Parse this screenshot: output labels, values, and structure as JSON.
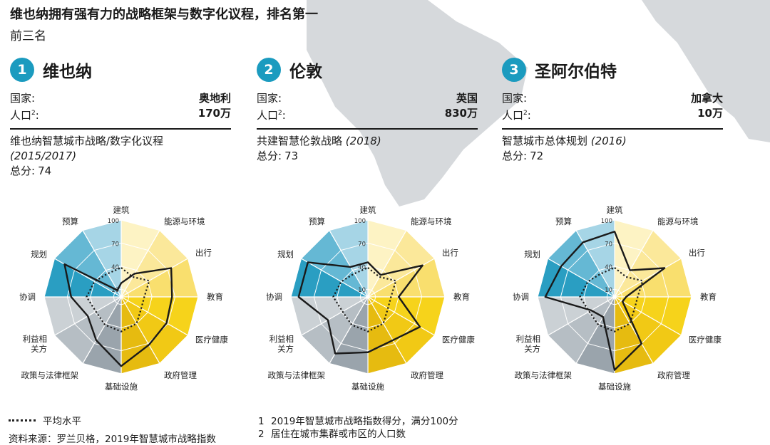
{
  "title": "维也纳拥有强有力的战略框架与数字化议程，排名第一",
  "subtitle": "前三名",
  "labels": {
    "country": "国家:",
    "population": "人口",
    "population_sup": "2",
    "population_colon": ":",
    "score": "总分:"
  },
  "cities": [
    {
      "rank": "1",
      "name": "维也纳",
      "country": "奥地利",
      "population": "170万",
      "strategy_text": "维也纳智慧城市战略/数字化议程",
      "strategy_year": "(2015/2017)",
      "score": "74"
    },
    {
      "rank": "2",
      "name": "伦敦",
      "country": "英国",
      "population": "830万",
      "strategy_text": "共建智慧伦敦战略",
      "strategy_year": "(2018)",
      "score": "73"
    },
    {
      "rank": "3",
      "name": "圣阿尔伯特",
      "country": "加拿大",
      "population": "10万",
      "strategy_text": "智慧城市总体规划",
      "strategy_year": "(2016)",
      "score": "72"
    }
  ],
  "legend": {
    "average_label": "平均水平"
  },
  "footnotes": [
    {
      "num": "1",
      "text": "2019年智慧城市战略指数得分，满分100分"
    },
    {
      "num": "2",
      "text": "居住在城市集群或市区的人口数"
    }
  ],
  "source": "资料来源：罗兰贝格，2019年智慧城市战略指数",
  "colors": {
    "accent": "#1b9bbf",
    "yellow": "#f7d31a",
    "blue": "#2a9ec2",
    "grey": "#9aa4ac",
    "map": "#d6d9dc"
  },
  "chart_data": [
    {
      "type": "radar",
      "title": "维也纳",
      "categories": [
        "建筑",
        "能源与环境",
        "出行",
        "教育",
        "医疗健康",
        "政府管理",
        "基础设施",
        "政策与法律框架",
        "利益相关方",
        "协调",
        "规划",
        "预算"
      ],
      "category_label_lines": [
        [
          "建筑"
        ],
        [
          "能源与环境"
        ],
        [
          "出行"
        ],
        [
          "教育"
        ],
        [
          "医疗健康"
        ],
        [
          "政府管理"
        ],
        [
          "基础设施"
        ],
        [
          "政策与法律框架"
        ],
        [
          "利益相",
          "关方"
        ],
        [
          "协调"
        ],
        [
          "规划"
        ],
        [
          "预算"
        ]
      ],
      "ticks": [
        "10",
        "40",
        "70",
        "100"
      ],
      "rlim": [
        0,
        100
      ],
      "series": [
        {
          "values": [
            18,
            35,
            75,
            66,
            68,
            72,
            90,
            65,
            50,
            65,
            85,
            10
          ]
        },
        {
          "name": "平均水平",
          "style": "dotted",
          "values": [
            38,
            30,
            42,
            30,
            30,
            40,
            45,
            42,
            38,
            45,
            40,
            35
          ]
        }
      ]
    },
    {
      "type": "radar",
      "title": "伦敦",
      "categories": [
        "建筑",
        "能源与环境",
        "出行",
        "教育",
        "医疗健康",
        "政府管理",
        "基础设施",
        "政策与法律框架",
        "利益相关方",
        "协调",
        "规划",
        "预算"
      ],
      "category_label_lines": [
        [
          "建筑"
        ],
        [
          "能源与环境"
        ],
        [
          "出行"
        ],
        [
          "教育"
        ],
        [
          "医疗健康"
        ],
        [
          "政府管理"
        ],
        [
          "基础设施"
        ],
        [
          "政策与法律框架"
        ],
        [
          "利益相",
          "关方"
        ],
        [
          "协调"
        ],
        [
          "规划"
        ],
        [
          "预算"
        ]
      ],
      "ticks": [
        "10",
        "40",
        "70",
        "100"
      ],
      "rlim": [
        0,
        100
      ],
      "series": [
        {
          "values": [
            45,
            33,
            82,
            40,
            78,
            65,
            72,
            85,
            60,
            90,
            90,
            45
          ]
        },
        {
          "name": "平均水平",
          "style": "dotted",
          "values": [
            38,
            30,
            42,
            30,
            30,
            40,
            45,
            42,
            38,
            45,
            40,
            35
          ]
        }
      ]
    },
    {
      "type": "radar",
      "title": "圣阿尔伯特",
      "categories": [
        "建筑",
        "能源与环境",
        "出行",
        "教育",
        "医疗健康",
        "政府管理",
        "基础设施",
        "政策与法律框架",
        "利益相关方",
        "协调",
        "规划",
        "预算"
      ],
      "category_label_lines": [
        [
          "建筑"
        ],
        [
          "能源与环境"
        ],
        [
          "出行"
        ],
        [
          "教育"
        ],
        [
          "医疗健康"
        ],
        [
          "政府管理"
        ],
        [
          "基础设施"
        ],
        [
          "政策与法律框架"
        ],
        [
          "利益相",
          "关方"
        ],
        [
          "协调"
        ],
        [
          "规划"
        ],
        [
          "预算"
        ]
      ],
      "ticks": [
        "10",
        "40",
        "70",
        "100"
      ],
      "rlim": [
        0,
        100
      ],
      "series": [
        {
          "values": [
            85,
            40,
            75,
            15,
            12,
            70,
            95,
            30,
            35,
            90,
            80,
            82
          ]
        },
        {
          "name": "平均水平",
          "style": "dotted",
          "values": [
            38,
            30,
            42,
            30,
            30,
            40,
            45,
            42,
            38,
            45,
            40,
            35
          ]
        }
      ]
    }
  ]
}
